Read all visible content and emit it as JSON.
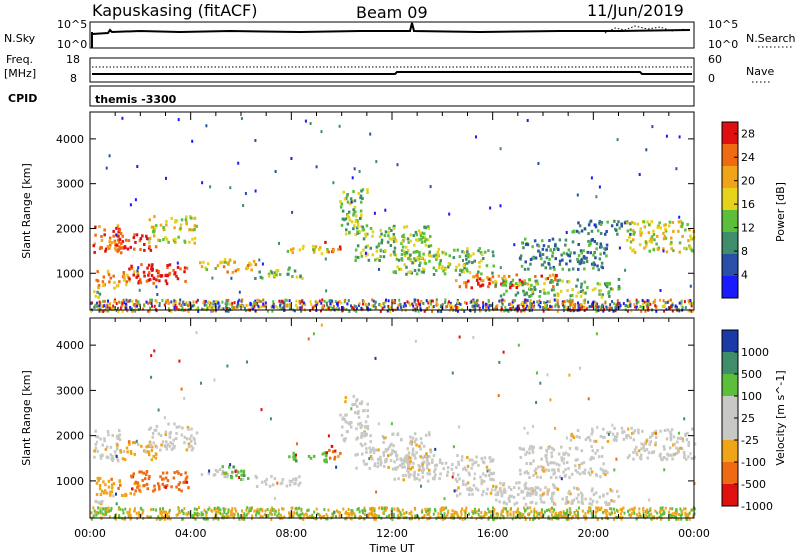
{
  "header": {
    "station": "Kapuskasing (fitACF)",
    "beam": "Beam 09",
    "date": "11/Jun/2019"
  },
  "noise_panel": {
    "left_label": "N.Sky",
    "left_ticks": [
      "10^5",
      "10^0"
    ],
    "right_label": "N.Search",
    "right_ticks": [
      "10^5",
      "10^0"
    ]
  },
  "freq_panel": {
    "left_label_1": "Freq.",
    "left_label_2": "[MHz]",
    "left_ticks": [
      "18",
      "8"
    ],
    "right_label": "Nave",
    "right_ticks": [
      "60",
      "0"
    ]
  },
  "cpid": {
    "label": "CPID",
    "value": "themis -3300"
  },
  "colors": {
    "power": [
      "#1a1aff",
      "#2a4fa8",
      "#3f8d6a",
      "#5bbf3c",
      "#e6d21a",
      "#f0a418",
      "#f06a12",
      "#e01010"
    ],
    "velocity": [
      "#e01010",
      "#f06a12",
      "#f0a418",
      "#c8c8c4",
      "#c8c8c4",
      "#5bbf3c",
      "#3f8d6a",
      "#1a3aa8"
    ]
  },
  "chart_data": [
    {
      "type": "heatmap",
      "name": "power",
      "ylabel": "Slant Range [km]",
      "xlabel": "Time UT",
      "x_ticks": [
        "00:00",
        "04:00",
        "08:00",
        "12:00",
        "16:00",
        "20:00",
        "00:00"
      ],
      "xlim_hours": [
        0,
        24
      ],
      "y_ticks": [
        1000,
        2000,
        3000,
        4000
      ],
      "ylim": [
        180,
        4600
      ],
      "colorbar_label": "Power [dB]",
      "colorbar_ticks": [
        "4",
        "8",
        "12",
        "16",
        "20",
        "24",
        "28"
      ],
      "colorbar_range": [
        0,
        30
      ]
    },
    {
      "type": "heatmap",
      "name": "velocity",
      "ylabel": "Slant Range [km]",
      "xlabel": "Time UT",
      "x_ticks": [
        "00:00",
        "04:00",
        "08:00",
        "12:00",
        "16:00",
        "20:00",
        "00:00"
      ],
      "xlim_hours": [
        0,
        24
      ],
      "y_ticks": [
        1000,
        2000,
        3000,
        4000
      ],
      "ylim": [
        180,
        4600
      ],
      "colorbar_label": "Velocity [m s^-1]",
      "colorbar_ticks": [
        "1000",
        "500",
        "100",
        "25",
        "-25",
        "-100",
        "-500",
        "-1000"
      ]
    }
  ],
  "footer": {
    "x_axis_title": "Time UT"
  }
}
